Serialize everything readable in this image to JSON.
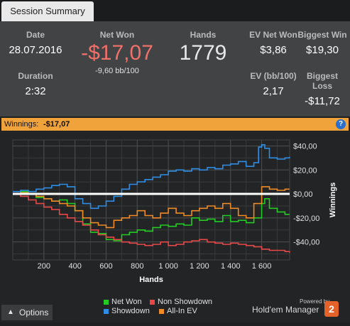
{
  "tab": {
    "label": "Session Summary"
  },
  "stats": {
    "date": {
      "label": "Date",
      "value": "28.07.2016"
    },
    "net_won": {
      "label": "Net Won",
      "value": "-$17,07",
      "sub": "-9,60 bb/100"
    },
    "hands": {
      "label": "Hands",
      "value": "1779"
    },
    "ev_net_won": {
      "label": "EV Net Won",
      "value": "$3,86"
    },
    "biggest_win": {
      "label": "Biggest Win",
      "value": "$19,30"
    },
    "duration": {
      "label": "Duration",
      "value": "2:32"
    },
    "ev_bb100": {
      "label": "EV (bb/100)",
      "value": "2,17"
    },
    "biggest_loss": {
      "label": "Biggest Loss",
      "value": "-$11,72"
    }
  },
  "winnings_bar": {
    "label": "Winnings:",
    "value": "-$17,07",
    "help": "?"
  },
  "chart_data": {
    "type": "line",
    "xlabel": "Hands",
    "ylabel": "Winnings",
    "xlim": [
      0,
      1780
    ],
    "ylim": [
      -55,
      45
    ],
    "x_ticks": [
      200,
      400,
      600,
      800,
      1000,
      1200,
      1400,
      1600
    ],
    "x_tick_labels": [
      "200",
      "400",
      "600",
      "800",
      "1 000",
      "1 200",
      "1 400",
      "1 600"
    ],
    "y_ticks": [
      40,
      20,
      0,
      -20,
      -40
    ],
    "y_tick_labels": [
      "$40,00",
      "$20,00",
      "$0,00",
      "-$20,00",
      "-$40,00"
    ],
    "grid": true,
    "zero_line": true,
    "legend_position": "bottom",
    "series": [
      {
        "name": "Net Won",
        "color": "#22cc22",
        "x": [
          0,
          50,
          100,
          150,
          200,
          250,
          300,
          350,
          400,
          450,
          500,
          550,
          600,
          650,
          700,
          750,
          800,
          850,
          900,
          950,
          1000,
          1050,
          1100,
          1150,
          1200,
          1250,
          1300,
          1350,
          1400,
          1450,
          1500,
          1550,
          1600,
          1620,
          1650,
          1700,
          1750,
          1779
        ],
        "y": [
          0,
          2,
          0,
          -3,
          -4,
          -6,
          -5,
          -8,
          -14,
          -25,
          -32,
          -33,
          -38,
          -39,
          -34,
          -32,
          -30,
          -31,
          -28,
          -26,
          -27,
          -25,
          -26,
          -20,
          -22,
          -21,
          -23,
          -18,
          -23,
          -22,
          -24,
          -20,
          -8,
          -4,
          -12,
          -15,
          -17,
          -17
        ]
      },
      {
        "name": "Non Showdown",
        "color": "#e84848",
        "x": [
          0,
          50,
          100,
          150,
          200,
          250,
          300,
          350,
          400,
          450,
          500,
          550,
          600,
          650,
          700,
          750,
          800,
          850,
          900,
          950,
          1000,
          1050,
          1100,
          1150,
          1200,
          1250,
          1300,
          1350,
          1400,
          1450,
          1500,
          1550,
          1600,
          1650,
          1700,
          1750,
          1779
        ],
        "y": [
          0,
          -2,
          -5,
          -8,
          -11,
          -13,
          -17,
          -20,
          -23,
          -26,
          -30,
          -34,
          -36,
          -38,
          -40,
          -41,
          -42,
          -43,
          -42,
          -40,
          -43,
          -42,
          -40,
          -39,
          -38,
          -40,
          -41,
          -42,
          -41,
          -42,
          -43,
          -44,
          -46,
          -47,
          -47,
          -48,
          -49
        ]
      },
      {
        "name": "Showdown",
        "color": "#2f8de4",
        "x": [
          0,
          50,
          100,
          150,
          200,
          250,
          300,
          350,
          400,
          450,
          500,
          550,
          600,
          650,
          700,
          750,
          800,
          850,
          900,
          950,
          1000,
          1050,
          1100,
          1150,
          1200,
          1250,
          1300,
          1350,
          1400,
          1450,
          1500,
          1550,
          1580,
          1600,
          1620,
          1650,
          1700,
          1750,
          1779
        ],
        "y": [
          2,
          3,
          2,
          4,
          5,
          7,
          8,
          6,
          -4,
          -8,
          -12,
          -10,
          -6,
          -2,
          4,
          8,
          10,
          12,
          14,
          16,
          19,
          20,
          19,
          21,
          20,
          22,
          21,
          24,
          25,
          27,
          23,
          26,
          39,
          41,
          38,
          30,
          29,
          30,
          31
        ]
      },
      {
        "name": "All-In EV",
        "color": "#f08a24",
        "x": [
          0,
          50,
          100,
          150,
          200,
          250,
          300,
          350,
          400,
          450,
          500,
          550,
          600,
          650,
          700,
          750,
          800,
          850,
          900,
          950,
          1000,
          1050,
          1100,
          1150,
          1200,
          1250,
          1300,
          1350,
          1400,
          1450,
          1500,
          1550,
          1600,
          1650,
          1700,
          1750,
          1779
        ],
        "y": [
          0,
          1,
          0,
          -2,
          -4,
          -6,
          -8,
          -10,
          -14,
          -20,
          -24,
          -26,
          -28,
          -22,
          -20,
          -18,
          -14,
          -18,
          -20,
          -16,
          -12,
          -16,
          -18,
          -14,
          -12,
          -10,
          -12,
          -8,
          -12,
          -18,
          -20,
          -8,
          6,
          4,
          3,
          4,
          4
        ]
      }
    ]
  },
  "legend": [
    {
      "name": "Net Won",
      "color": "#22cc22"
    },
    {
      "name": "Non Showdown",
      "color": "#e84848"
    },
    {
      "name": "Showdown",
      "color": "#2f8de4"
    },
    {
      "name": "All-In EV",
      "color": "#f08a24"
    }
  ],
  "options": {
    "label": "Options",
    "icon": "chevron-up-icon"
  },
  "branding": {
    "powered": "Powered by",
    "name": "Hold'em Manager",
    "logo": "2"
  }
}
